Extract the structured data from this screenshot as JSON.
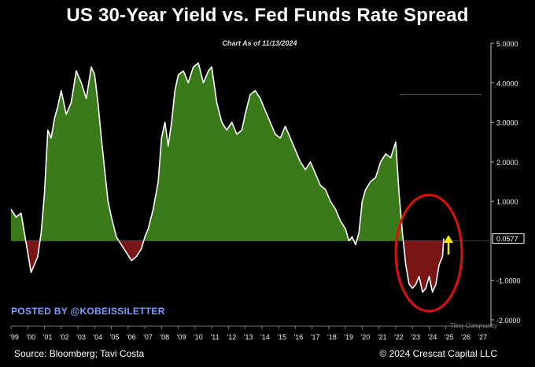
{
  "title": "US 30-Year Yield vs. Fed Funds Rate Spread",
  "subtitle": "Chart As of 11/13/2024",
  "posted_by": "POSTED BY @KOBEISSILETTER",
  "source": "Source: Bloomberg; Tavi Costa",
  "copyright": "© 2024 Crescat Capital LLC",
  "watermark": "Tiker Community",
  "colors": {
    "positive_fill": "#3a7a1a",
    "negative_fill": "#7a1515",
    "line": "#ffffff",
    "circle": "#e01010",
    "arrow": "#f5e200",
    "background": "#000000"
  },
  "chart_data": {
    "type": "area",
    "xlabel": "",
    "ylabel": "",
    "ylim": [
      -2.0,
      5.0
    ],
    "y_ticks": [
      "5.0000",
      "4.0000",
      "3.0000",
      "2.0000",
      "1.0000",
      "-1.0000",
      "-2.0000"
    ],
    "y_tick_values": [
      5,
      4,
      3,
      2,
      1,
      -1,
      -2
    ],
    "x_ticks": [
      "'99",
      "'00",
      "'01",
      "'02",
      "'03",
      "'04",
      "'05",
      "'06",
      "'07",
      "'08",
      "'09",
      "'10",
      "'11",
      "'12",
      "'13",
      "'14",
      "'15",
      "'16",
      "'17",
      "'18",
      "'19",
      "'20",
      "'21",
      "'22",
      "'23",
      "'24",
      "'25",
      "'26",
      "'27"
    ],
    "last_value_label": "0.0577",
    "last_value": 0.0577,
    "series": [
      {
        "x": [
          1999.0,
          1999.3,
          1999.6,
          1999.8,
          2000.0,
          2000.2,
          2000.4,
          2000.6,
          2000.8,
          2001.0,
          2001.2,
          2001.4,
          2001.6,
          2001.8,
          2002.0,
          2002.3,
          2002.6,
          2002.9,
          2003.2,
          2003.5,
          2003.8,
          2004.0,
          2004.2,
          2004.4,
          2004.6,
          2004.8,
          2005.0,
          2005.3,
          2005.6,
          2005.9,
          2006.2,
          2006.5,
          2006.8,
          2007.0,
          2007.2,
          2007.5,
          2007.8,
          2008.0,
          2008.2,
          2008.4,
          2008.6,
          2008.8,
          2009.0,
          2009.3,
          2009.6,
          2009.9,
          2010.2,
          2010.5,
          2010.8,
          2011.0,
          2011.3,
          2011.6,
          2011.9,
          2012.2,
          2012.5,
          2012.8,
          2013.0,
          2013.3,
          2013.6,
          2013.9,
          2014.2,
          2014.5,
          2014.8,
          2015.1,
          2015.4,
          2015.7,
          2016.0,
          2016.3,
          2016.6,
          2016.9,
          2017.2,
          2017.5,
          2017.8,
          2018.1,
          2018.4,
          2018.7,
          2019.0,
          2019.2,
          2019.4,
          2019.6,
          2019.8,
          2020.0,
          2020.2,
          2020.5,
          2020.8,
          2021.1,
          2021.4,
          2021.7,
          2022.0,
          2022.2,
          2022.4,
          2022.6,
          2022.8,
          2023.0,
          2023.2,
          2023.4,
          2023.6,
          2023.8,
          2024.0,
          2024.2,
          2024.4,
          2024.6,
          2024.8,
          2024.87
        ],
        "values": [
          0.8,
          0.6,
          0.7,
          0.2,
          -0.3,
          -0.8,
          -0.6,
          -0.4,
          0.2,
          1.2,
          2.8,
          2.6,
          3.1,
          3.4,
          3.8,
          3.2,
          3.5,
          4.3,
          4.0,
          3.6,
          4.4,
          4.2,
          3.5,
          2.6,
          1.8,
          1.0,
          0.6,
          0.1,
          -0.1,
          -0.3,
          -0.5,
          -0.4,
          -0.2,
          0.1,
          0.3,
          0.8,
          1.5,
          2.6,
          3.0,
          2.4,
          3.0,
          3.8,
          4.2,
          4.3,
          4.0,
          4.4,
          4.5,
          4.0,
          4.3,
          4.4,
          3.5,
          3.0,
          2.8,
          3.0,
          2.7,
          2.8,
          3.2,
          3.7,
          3.8,
          3.6,
          3.3,
          3.0,
          2.7,
          2.6,
          2.9,
          2.6,
          2.3,
          2.0,
          1.8,
          2.0,
          1.7,
          1.4,
          1.3,
          1.0,
          0.8,
          0.5,
          0.3,
          0.0,
          0.1,
          -0.1,
          0.2,
          1.0,
          1.3,
          1.5,
          1.6,
          2.0,
          2.2,
          2.1,
          2.5,
          1.2,
          0.2,
          -0.6,
          -1.1,
          -1.2,
          -1.1,
          -0.9,
          -1.3,
          -1.2,
          -0.9,
          -1.3,
          -1.1,
          -0.6,
          -0.4,
          0.0577
        ]
      }
    ]
  }
}
